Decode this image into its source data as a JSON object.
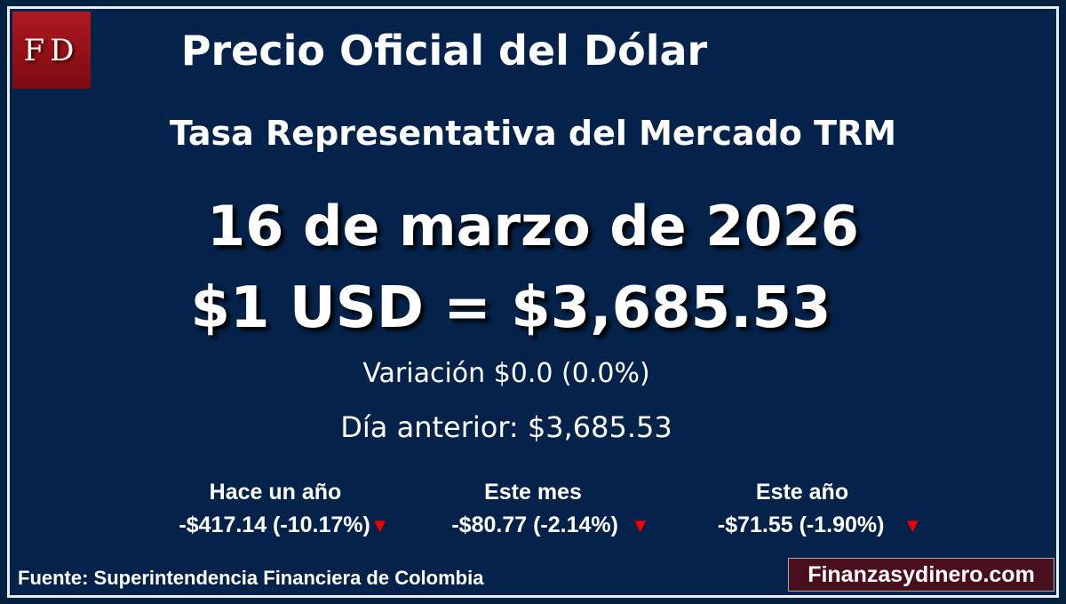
{
  "logo": "FD",
  "title": "Precio Oficial del Dólar",
  "subtitle": "Tasa Representativa del Mercado TRM",
  "date": "16 de marzo de 2026",
  "price": "$1 USD = $3,685.53",
  "variation": "Variación $0.0 (0.0%)",
  "previous": "Día anterior: $3,685.53",
  "stats": [
    {
      "label": "Hace un año",
      "value": "-$417.14 (-10.17%)",
      "direction": "down"
    },
    {
      "label": "Este mes",
      "value": "-$80.77 (-2.14%)",
      "direction": "down"
    },
    {
      "label": "Este año",
      "value": "-$71.55 (-1.90%)",
      "direction": "down"
    }
  ],
  "source": "Fuente: Superintendencia Financiera de Colombia",
  "site": "Finanzasydinero.com",
  "colors": {
    "background": "#05234a",
    "logo": "#b01820",
    "site_badge": "#4a0f1c",
    "down": "#e00000"
  }
}
